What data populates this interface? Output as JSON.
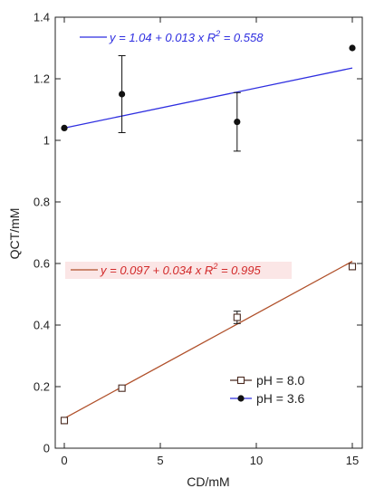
{
  "chart_data": {
    "type": "scatter",
    "xlabel": "CD/mM",
    "ylabel": "QCT/mM",
    "xlim": [
      0,
      15
    ],
    "ylim": [
      0,
      1.4
    ],
    "x_ticks": [
      0,
      5,
      10,
      15
    ],
    "y_ticks": [
      0,
      0.2,
      0.4,
      0.6,
      0.8,
      1,
      1.2,
      1.4
    ],
    "x_tick_labels": [
      "0",
      "5",
      "10",
      "15"
    ],
    "y_tick_labels": [
      "0",
      "0.2",
      "0.4",
      "0.6",
      "0.8",
      "1",
      "1.2",
      "1.4"
    ],
    "grid": false,
    "legend_position": "bottom-right",
    "series": [
      {
        "name": "pH = 8.0",
        "marker": "open-square",
        "color": "#4a2a20",
        "x": [
          0,
          3,
          9,
          15
        ],
        "y": [
          0.09,
          0.195,
          0.425,
          0.59
        ],
        "err": [
          0.01,
          0.005,
          0.02,
          0.01
        ],
        "fit": {
          "intercept": 0.097,
          "slope": 0.034,
          "color": "#b0502a",
          "equation": "y = 0.097 + 0.034 x",
          "r2_label": "R",
          "r2_sup": "2",
          "r2_value": " = 0.995",
          "eq_color": "#d22a2a"
        }
      },
      {
        "name": "pH = 3.6",
        "marker": "filled-circle",
        "color": "#111111",
        "x": [
          0,
          3,
          9,
          15
        ],
        "y": [
          1.04,
          1.15,
          1.06,
          1.3
        ],
        "err": [
          0.0,
          0.125,
          0.095,
          0.0
        ],
        "fit": {
          "intercept": 1.04,
          "slope": 0.013,
          "color": "#2e2ee0",
          "equation": "y = 1.04 + 0.013 x",
          "r2_label": "R",
          "r2_sup": "2",
          "r2_value": " = 0.558",
          "eq_color": "#2e2ee0"
        }
      }
    ]
  }
}
